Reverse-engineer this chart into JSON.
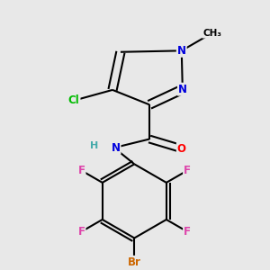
{
  "background_color": "#e8e8e8",
  "bond_color": "#000000",
  "atom_colors": {
    "N": "#0000dd",
    "O": "#ff0000",
    "Cl": "#00bb00",
    "Br": "#cc6600",
    "F": "#dd44aa",
    "C": "#000000",
    "H": "#44aaaa",
    "NH": "#44aaaa"
  }
}
